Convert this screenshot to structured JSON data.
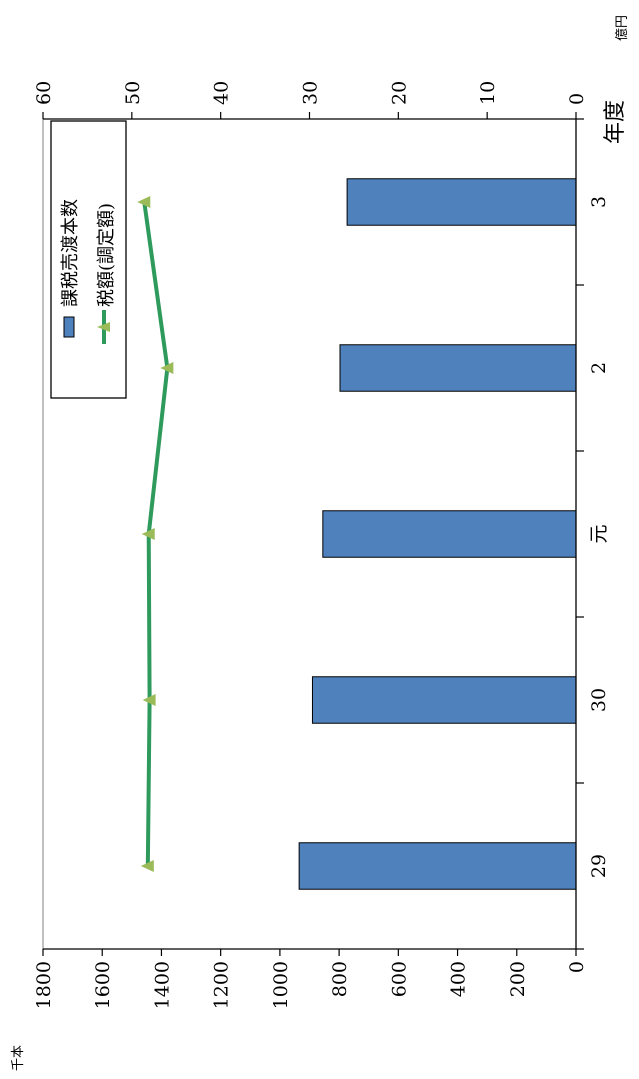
{
  "chart_data": {
    "type": "bar",
    "title": "",
    "orientation": "rotated-90-clockwise",
    "xlabel": "年度",
    "categories": [
      "29",
      "30",
      "元",
      "2",
      "3"
    ],
    "series": [
      {
        "name": "課税売渡本数",
        "type": "bar",
        "axis": "left",
        "unit": "千本",
        "values": [
          935,
          890,
          855,
          797,
          773
        ],
        "color": "#4f81bd"
      },
      {
        "name": "税額(調定額)",
        "type": "line",
        "axis": "right",
        "unit": "億円",
        "values": [
          48.2,
          48.0,
          48.1,
          46.0,
          48.6
        ],
        "color": "#2e9a5c",
        "marker_color": "#9bbb59"
      }
    ],
    "left_axis": {
      "unit": "千本",
      "ylim": [
        0,
        1800
      ],
      "ticks": [
        "0",
        "200",
        "400",
        "600",
        "800",
        "1000",
        "1200",
        "1400",
        "1600",
        "1800"
      ]
    },
    "right_axis": {
      "unit": "億円",
      "ylim": [
        0,
        60
      ],
      "ticks": [
        "0",
        "10",
        "20",
        "30",
        "40",
        "50",
        "60"
      ]
    },
    "legend": {
      "placement": "top-left"
    },
    "grid": false
  }
}
